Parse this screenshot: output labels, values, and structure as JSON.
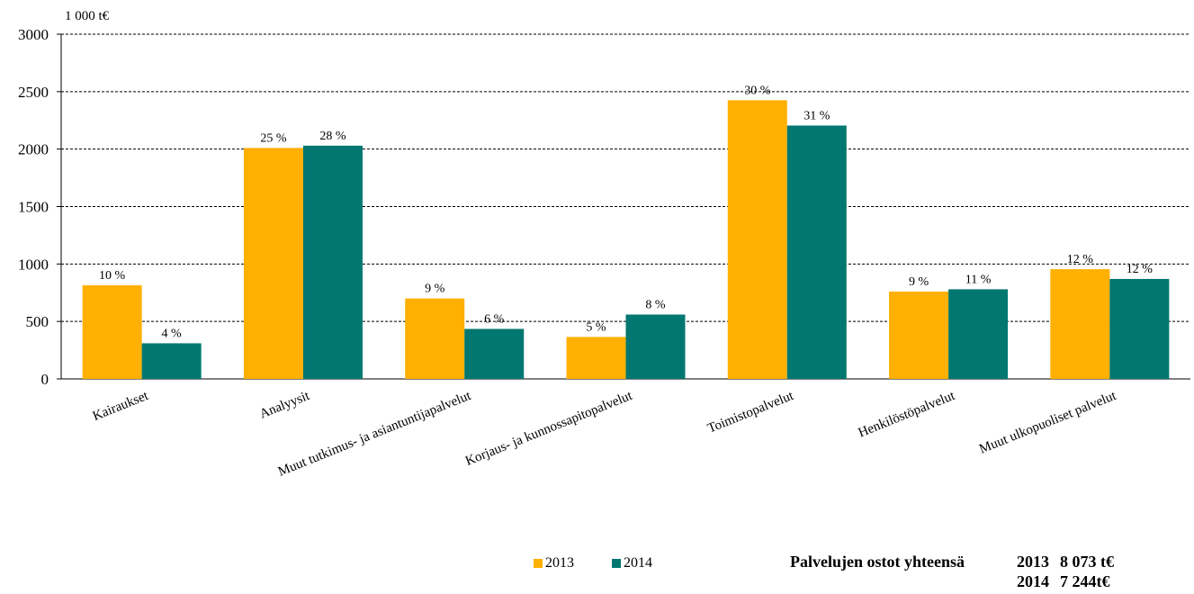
{
  "chart_data": {
    "type": "bar",
    "unit_label": "1 000 t€",
    "ylim": [
      0,
      3000
    ],
    "yticks": [
      "0",
      "500",
      "1000",
      "1500",
      "2000",
      "2500",
      "3000"
    ],
    "grid": true,
    "legend_position": "bottom",
    "categories": [
      "Kairaukset",
      "Analyysit",
      "Muut tutkimus- ja asiantuntijapalvelut",
      "Korjaus- ja kunnossapitopalvelut",
      "Toimistopalvelut",
      "Henkilöstöpalvelut",
      "Muut ulkopuoliset palvelut"
    ],
    "series": [
      {
        "name": "2013",
        "color": "#FFB000",
        "values": [
          815,
          2010,
          700,
          365,
          2425,
          760,
          955
        ],
        "labels": [
          "10 %",
          "25 %",
          "9 %",
          "5 %",
          "30 %",
          "9 %",
          "12 %"
        ]
      },
      {
        "name": "2014",
        "color": "#007770",
        "values": [
          310,
          2030,
          435,
          560,
          2205,
          780,
          870
        ],
        "labels": [
          "4 %",
          "28 %",
          "6 %",
          "8 %",
          "31 %",
          "11 %",
          "12 %"
        ]
      }
    ]
  },
  "totals": {
    "title": "Palvelujen ostot yhteensä",
    "rows": [
      {
        "year": "2013",
        "value": "8 073 t€"
      },
      {
        "year": "2014",
        "value": "7 244t€"
      }
    ]
  }
}
